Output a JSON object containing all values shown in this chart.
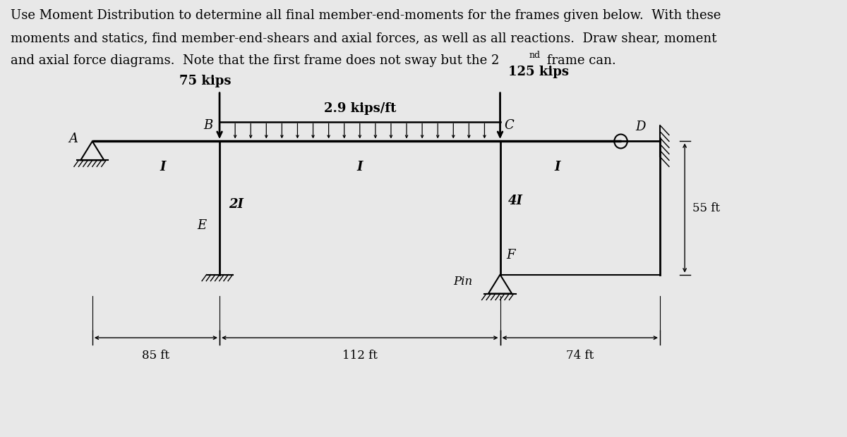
{
  "bg_color": "#e8e8e8",
  "load_75": "75 kips",
  "load_125": "125 kips",
  "load_dist": "2.9 kips/ft",
  "label_A": "A",
  "label_B": "B",
  "label_C": "C",
  "label_D": "D",
  "label_E": "E",
  "label_F": "F",
  "label_Pin": "Pin",
  "label_I_AB": "I",
  "label_I_BC": "I",
  "label_I_CD": "I",
  "label_2I": "2I",
  "label_4I": "4I",
  "dim_85": "85 ft",
  "dim_112": "112 ft",
  "dim_74": "74 ft",
  "dim_55": "55 ft",
  "font_size_title": 13,
  "font_size_labels": 13,
  "font_size_dims": 12
}
